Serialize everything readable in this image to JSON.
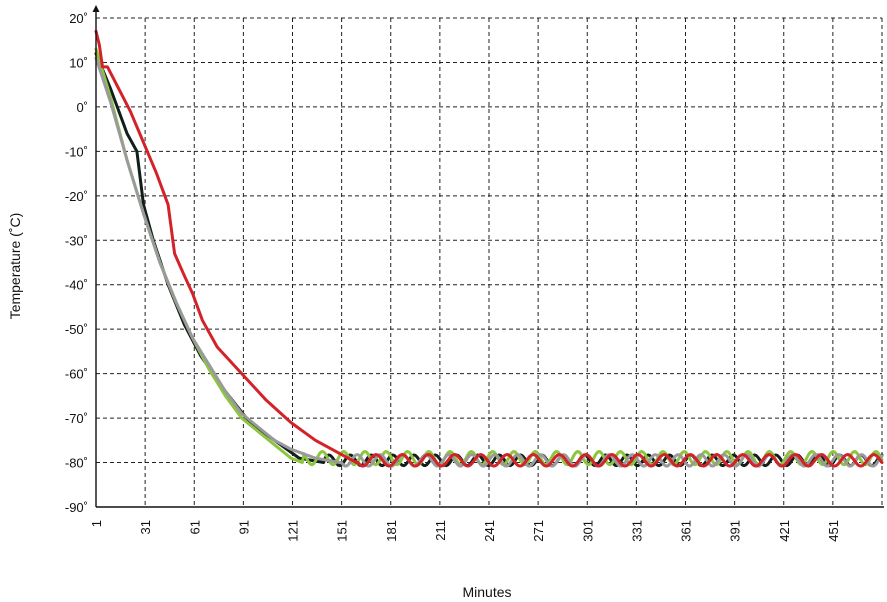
{
  "chart_data": {
    "type": "line",
    "xlabel": "Minutes",
    "ylabel": "Temperature (˚C)",
    "x_ticks": [
      1,
      31,
      61,
      91,
      121,
      151,
      181,
      211,
      241,
      271,
      301,
      331,
      361,
      391,
      421,
      451
    ],
    "xlim": [
      1,
      481
    ],
    "ylim": [
      -90,
      20
    ],
    "y_ticks": [
      20,
      10,
      0,
      -10,
      -20,
      -30,
      -40,
      -50,
      -60,
      -70,
      -80,
      -90
    ],
    "y_tick_labels": [
      "20˚",
      "10˚",
      "0˚",
      "-10˚",
      "-20˚",
      "-30˚",
      "-40˚",
      "-50˚",
      "-60˚",
      "-70˚",
      "-80˚",
      "-90˚"
    ],
    "grid": true,
    "series": [
      {
        "color": "#111e1a",
        "points": [
          [
            1,
            12
          ],
          [
            10,
            4
          ],
          [
            20,
            -6
          ],
          [
            26,
            -10
          ],
          [
            30,
            -22
          ],
          [
            36,
            -30
          ],
          [
            45,
            -40
          ],
          [
            55,
            -49
          ],
          [
            65,
            -56
          ],
          [
            80,
            -64
          ],
          [
            95,
            -71
          ],
          [
            110,
            -75
          ],
          [
            125,
            -79
          ],
          [
            140,
            -80
          ]
        ],
        "oscillation": {
          "center": -79.5,
          "amplitude": 1.2,
          "period": 13,
          "phase": 0
        }
      },
      {
        "color": "#8cc63f",
        "points": [
          [
            1,
            13
          ],
          [
            10,
            2
          ],
          [
            20,
            -12
          ],
          [
            30,
            -24
          ],
          [
            40,
            -35
          ],
          [
            50,
            -44
          ],
          [
            60,
            -52
          ],
          [
            70,
            -59
          ],
          [
            80,
            -65
          ],
          [
            90,
            -70
          ],
          [
            100,
            -73
          ],
          [
            110,
            -76
          ],
          [
            120,
            -79
          ],
          [
            127,
            -80
          ]
        ],
        "oscillation": {
          "center": -79,
          "amplitude": 1.5,
          "period": 13,
          "phase": 4
        }
      },
      {
        "color": "#9a9a9a",
        "points": [
          [
            1,
            11
          ],
          [
            10,
            1
          ],
          [
            20,
            -12
          ],
          [
            30,
            -24
          ],
          [
            40,
            -35
          ],
          [
            50,
            -44
          ],
          [
            60,
            -52
          ],
          [
            70,
            -58
          ],
          [
            80,
            -64
          ],
          [
            90,
            -69
          ],
          [
            100,
            -72
          ],
          [
            110,
            -75
          ],
          [
            120,
            -77
          ],
          [
            135,
            -79
          ],
          [
            150,
            -80
          ]
        ],
        "oscillation": {
          "center": -79.5,
          "amplitude": 1.3,
          "period": 14,
          "phase": 7
        }
      },
      {
        "color": "#d2232a",
        "points": [
          [
            1,
            17
          ],
          [
            3,
            14
          ],
          [
            5,
            9
          ],
          [
            8,
            9
          ],
          [
            15,
            4
          ],
          [
            22,
            -1
          ],
          [
            30,
            -8
          ],
          [
            38,
            -15
          ],
          [
            45,
            -22
          ],
          [
            49,
            -33
          ],
          [
            55,
            -38
          ],
          [
            60,
            -42
          ],
          [
            66,
            -48
          ],
          [
            75,
            -54
          ],
          [
            90,
            -60
          ],
          [
            105,
            -66
          ],
          [
            120,
            -71
          ],
          [
            135,
            -75
          ],
          [
            150,
            -78
          ],
          [
            160,
            -80
          ]
        ],
        "oscillation": {
          "center": -79.5,
          "amplitude": 1.3,
          "period": 16,
          "phase": 8
        }
      }
    ]
  }
}
